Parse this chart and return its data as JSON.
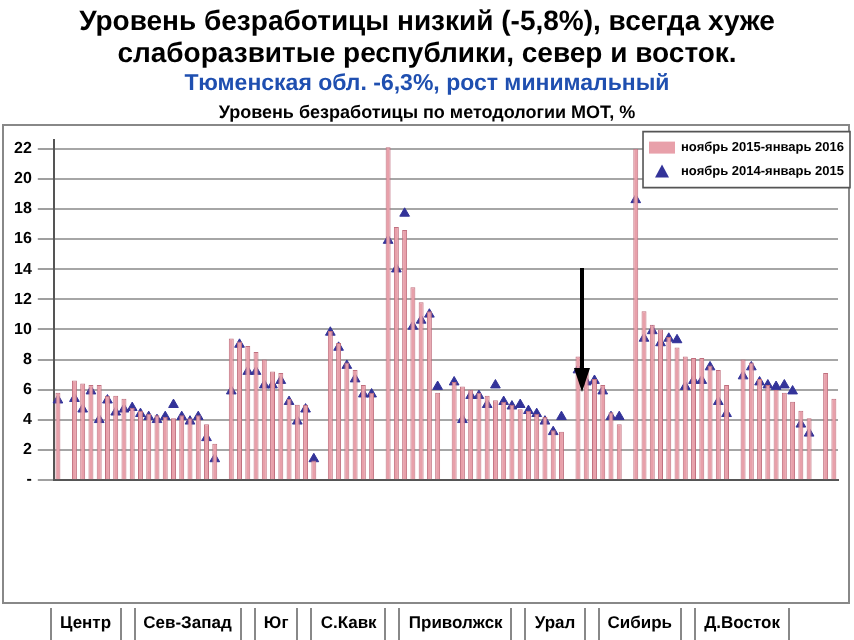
{
  "chart_data": {
    "type": "bar",
    "title": "Уровень безработицы низкий (-5,8%), всегда хуже слаборазвитые республики, север и восток.",
    "subtitle": "Тюменская обл. -6,3%, рост минимальный",
    "annotations": [
      "Уровень безработицы по методологии МОТ, %",
      "Центр",
      "Сев-Запад",
      "Юг",
      "С.Кавк",
      "Приволжск",
      "Урал",
      "Сибирь",
      "Д.Восток"
    ],
    "categories": [
      null,
      null,
      null,
      null,
      null,
      null,
      null,
      null,
      null,
      null,
      null,
      null,
      null,
      null,
      null,
      null,
      null,
      null,
      null,
      null,
      null,
      null,
      null,
      null,
      null,
      null,
      null,
      null,
      null,
      null,
      null,
      null,
      null,
      null,
      null,
      null,
      null,
      null,
      null,
      null,
      null,
      null,
      null,
      null,
      null,
      null,
      null,
      null,
      null,
      null,
      null,
      null,
      null,
      null,
      null,
      null,
      null,
      null,
      null,
      null,
      null,
      null,
      null,
      null,
      null,
      null,
      null,
      null,
      null,
      null,
      null,
      null,
      null,
      null,
      null,
      null,
      null,
      null,
      null,
      null,
      null,
      null,
      null,
      null,
      null,
      null,
      null,
      null,
      null,
      null,
      null,
      null,
      null,
      null,
      null
    ],
    "series": [
      {
        "name": "ноябрь 2015-январь 2016",
        "type": "bar",
        "color": "#e8a0aa",
        "values": [
          5.8,
          null,
          6.6,
          6.4,
          6.3,
          6.3,
          5.6,
          5.6,
          5.4,
          4.8,
          4.6,
          4.4,
          4.3,
          4.2,
          4.1,
          4.3,
          4.1,
          4.3,
          3.7,
          2.4,
          null,
          9.4,
          9.2,
          8.9,
          8.5,
          8.0,
          7.2,
          7.1,
          5.4,
          5.0,
          5.0,
          1.3,
          null,
          9.9,
          9.1,
          7.8,
          7.3,
          6.3,
          5.8,
          null,
          22.1,
          16.8,
          16.6,
          12.8,
          11.8,
          11.2,
          5.8,
          null,
          6.5,
          6.2,
          6.0,
          5.8,
          5.6,
          5.3,
          5.2,
          5.0,
          4.7,
          4.6,
          4.4,
          4.2,
          3.3,
          3.2,
          null,
          8.2,
          7.3,
          6.7,
          6.3,
          4.5,
          3.7,
          null,
          22.0,
          11.2,
          10.3,
          10.0,
          9.5,
          8.8,
          8.2,
          8.1,
          8.1,
          7.6,
          7.3,
          6.3,
          null,
          8.0,
          7.8,
          6.7,
          6.3,
          6.0,
          5.8,
          5.2,
          4.6,
          4.1,
          null,
          7.1,
          5.4
        ]
      },
      {
        "name": "ноябрь 2014-январь 2015",
        "type": "scatter",
        "color": "#333399",
        "values": [
          5.3,
          null,
          5.4,
          4.7,
          5.9,
          4.0,
          5.3,
          4.5,
          4.7,
          4.8,
          4.4,
          4.2,
          4.0,
          4.2,
          5.0,
          4.2,
          3.9,
          4.2,
          2.8,
          1.4,
          null,
          5.9,
          9.0,
          7.2,
          7.2,
          6.3,
          6.3,
          6.6,
          5.2,
          3.9,
          4.7,
          1.4,
          null,
          9.8,
          8.8,
          7.6,
          6.7,
          5.7,
          5.7,
          null,
          15.9,
          14.0,
          17.7,
          10.2,
          10.6,
          11.0,
          6.2,
          null,
          6.5,
          4.0,
          5.6,
          5.6,
          5.0,
          6.3,
          5.2,
          4.9,
          5.0,
          4.6,
          4.4,
          3.9,
          3.2,
          4.2,
          null,
          7.3,
          6.5,
          6.6,
          5.9,
          4.2,
          4.2,
          null,
          18.6,
          9.4,
          9.9,
          9.1,
          9.4,
          9.3,
          6.2,
          6.6,
          6.6,
          7.5,
          5.2,
          4.4,
          null,
          6.9,
          7.5,
          6.5,
          6.3,
          6.2,
          6.3,
          5.9,
          3.7,
          3.1,
          null,
          null,
          null
        ]
      }
    ],
    "ylim": [
      0,
      22.6
    ],
    "yticks": [
      {
        "value": 0,
        "label": "-"
      },
      2,
      4,
      6,
      8,
      10,
      12,
      14,
      16,
      18,
      20,
      22
    ],
    "grid": "y",
    "legend": "top right",
    "marker": "triangle",
    "tick_labels": "y"
  }
}
